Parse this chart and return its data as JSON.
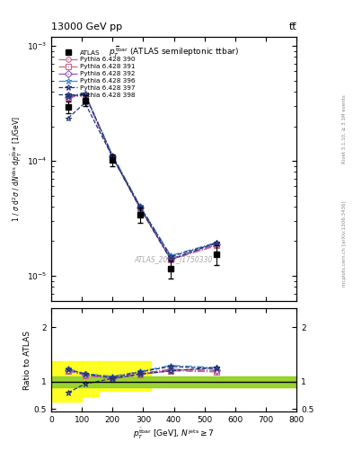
{
  "title_top": "13000 GeV pp",
  "title_top_right": "tt̅",
  "watermark": "ATLAS_2019_I1750330",
  "right_label_top": "Rivet 3.1.10, ≥ 3.1M events",
  "right_label_bottom": "mcplots.cern.ch [arXiv:1306.3436]",
  "ylabel_main": "1 / $\\sigma$ d$^2\\sigma$ / d$N^{\\rm obs}$ d$p^{{\\rm \\bar{t}bar}}_T$ [1/GeV]",
  "ylabel_ratio": "Ratio to ATLAS",
  "xlabel": "$p^{{\\rm \\bar{t}bar}}_T$ [GeV], $N^{\\rm jets} \\geq 7$",
  "x_centers": [
    55,
    110,
    200,
    290,
    390,
    540
  ],
  "atlas_y": [
    0.000295,
    0.000335,
    0.000102,
    3.4e-05,
    1.15e-05,
    1.55e-05
  ],
  "atlas_yerr": [
    3.5e-05,
    3.5e-05,
    1.2e-05,
    5e-06,
    2e-06,
    3e-06
  ],
  "pythia_390": [
    0.000355,
    0.000375,
    0.000108,
    3.9e-05,
    1.4e-05,
    1.85e-05
  ],
  "pythia_391": [
    0.000355,
    0.000375,
    0.000107,
    3.85e-05,
    1.38e-05,
    1.83e-05
  ],
  "pythia_392": [
    0.00036,
    0.000378,
    0.000109,
    3.92e-05,
    1.42e-05,
    1.87e-05
  ],
  "pythia_396": [
    0.000365,
    0.000385,
    0.000112,
    4.05e-05,
    1.5e-05,
    1.95e-05
  ],
  "pythia_397": [
    0.000362,
    0.000382,
    0.00011,
    4e-05,
    1.47e-05,
    1.92e-05
  ],
  "pythia_398": [
    0.000235,
    0.00032,
    0.000108,
    3.88e-05,
    1.38e-05,
    1.95e-05
  ],
  "ratio_390": [
    1.2,
    1.12,
    1.06,
    1.15,
    1.22,
    1.19
  ],
  "ratio_391": [
    1.2,
    1.12,
    1.05,
    1.13,
    1.2,
    1.18
  ],
  "ratio_392": [
    1.21,
    1.13,
    1.07,
    1.15,
    1.23,
    1.21
  ],
  "ratio_396": [
    1.24,
    1.15,
    1.1,
    1.19,
    1.3,
    1.26
  ],
  "ratio_397": [
    1.23,
    1.14,
    1.08,
    1.18,
    1.28,
    1.24
  ],
  "ratio_398": [
    0.8,
    0.96,
    1.06,
    1.14,
    1.2,
    1.26
  ],
  "styles": {
    "390": {
      "color": "#cc6688",
      "marker": "o",
      "ls": "-.",
      "label": "Pythia 6.428 390"
    },
    "391": {
      "color": "#cc6688",
      "marker": "s",
      "ls": "-.",
      "label": "Pythia 6.428 391"
    },
    "392": {
      "color": "#9955bb",
      "marker": "D",
      "ls": "-.",
      "label": "Pythia 6.428 392"
    },
    "396": {
      "color": "#4488cc",
      "marker": "*",
      "ls": "-.",
      "label": "Pythia 6.428 396"
    },
    "397": {
      "color": "#223377",
      "marker": "*",
      "ls": "--",
      "label": "Pythia 6.428 397"
    },
    "398": {
      "color": "#223377",
      "marker": "*",
      "ls": "--",
      "label": "Pythia 6.428 398"
    }
  },
  "ylim_main": [
    6e-06,
    0.0012
  ],
  "xlim": [
    0,
    800
  ],
  "ylim_ratio": [
    0.45,
    2.35
  ],
  "yticks_ratio": [
    0.5,
    1.0,
    2.0
  ],
  "ytick_labels_ratio": [
    "0.5",
    "1",
    "2"
  ],
  "green_lo": 0.9,
  "green_hi": 1.1,
  "yellow_steps": {
    "x_edges": [
      0,
      100,
      155,
      325,
      800
    ],
    "lower": [
      0.63,
      0.73,
      0.83,
      0.9
    ],
    "upper": [
      1.37,
      1.37,
      1.37,
      1.1
    ]
  }
}
